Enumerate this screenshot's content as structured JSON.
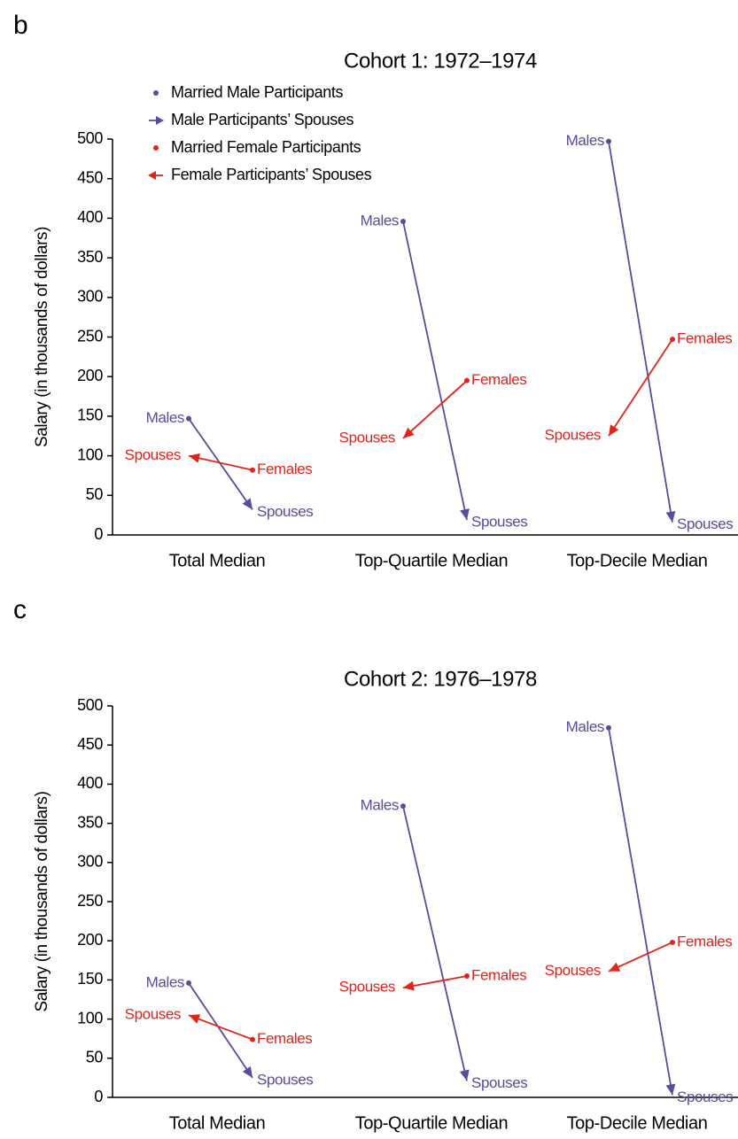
{
  "chart_data": [
    {
      "type": "arrow",
      "panel": "b",
      "title": "Cohort 1: 1972–1974",
      "ylabel": "Salary (in thousands of dollars)",
      "categories": [
        "Total Median",
        "Top-Quartile Median",
        "Top-Decile Median"
      ],
      "ylim": [
        0,
        500
      ],
      "yticks": [
        0,
        50,
        100,
        150,
        200,
        250,
        300,
        350,
        400,
        450,
        500
      ],
      "legend": "upper left",
      "series": [
        {
          "name": "Married Male Participants",
          "label": "Males",
          "color": "#5d4a9c",
          "values": [
            147,
            396,
            497
          ]
        },
        {
          "name": "Male Participants’ Spouses",
          "label": "Spouses",
          "color": "#5d4a9c",
          "values": [
            32,
            19,
            16
          ]
        },
        {
          "name": "Married Female Participants",
          "label": "Females",
          "color": "#e2231a",
          "values": [
            82,
            195,
            247
          ]
        },
        {
          "name": "Female Participants’ Spouses",
          "label": "Spouses",
          "color": "#e2231a",
          "values": [
            100,
            122,
            125
          ]
        }
      ]
    },
    {
      "type": "arrow",
      "panel": "c",
      "title": "Cohort 2: 1976–1978",
      "ylabel": "Salary (in thousands of dollars)",
      "categories": [
        "Total Median",
        "Top-Quartile Median",
        "Top-Decile Median"
      ],
      "ylim": [
        0,
        500
      ],
      "yticks": [
        0,
        50,
        100,
        150,
        200,
        250,
        300,
        350,
        400,
        450,
        500
      ],
      "series": [
        {
          "label": "Males",
          "color": "#5d4a9c",
          "values": [
            146,
            372,
            472
          ]
        },
        {
          "label": "Spouses",
          "color": "#5d4a9c",
          "values": [
            25,
            21,
            3
          ]
        },
        {
          "label": "Females",
          "color": "#e2231a",
          "values": [
            74,
            155,
            198
          ]
        },
        {
          "label": "Spouses",
          "color": "#e2231a",
          "values": [
            105,
            140,
            161
          ]
        }
      ]
    }
  ]
}
